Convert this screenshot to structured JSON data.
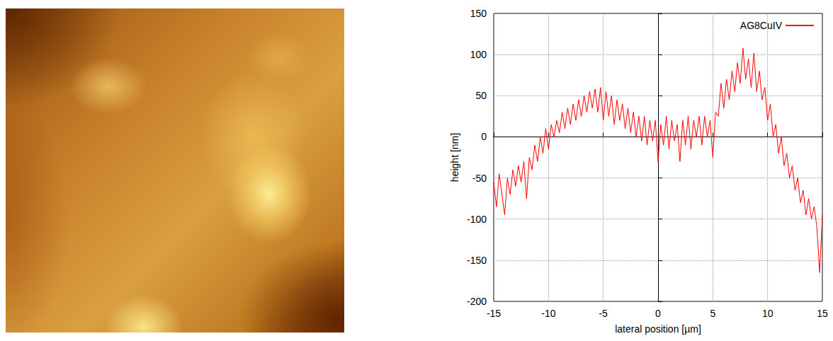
{
  "chart_data": {
    "type": "line",
    "x_label": "lateral position [µm]",
    "y_label": "height [nm]",
    "x": [
      -15,
      -14.75,
      -14.5,
      -14.25,
      -14,
      -13.75,
      -13.5,
      -13.25,
      -13,
      -12.75,
      -12.5,
      -12.25,
      -12,
      -11.75,
      -11.5,
      -11.25,
      -11,
      -10.75,
      -10.5,
      -10.25,
      -10,
      -9.75,
      -9.5,
      -9.25,
      -9,
      -8.75,
      -8.5,
      -8.25,
      -8,
      -7.75,
      -7.5,
      -7.25,
      -7,
      -6.75,
      -6.5,
      -6.25,
      -6,
      -5.75,
      -5.5,
      -5.25,
      -5,
      -4.75,
      -4.5,
      -4.25,
      -4,
      -3.75,
      -3.5,
      -3.25,
      -3,
      -2.75,
      -2.5,
      -2.25,
      -2,
      -1.75,
      -1.5,
      -1.25,
      -1,
      -0.75,
      -0.5,
      -0.25,
      0,
      0.25,
      0.5,
      0.75,
      1,
      1.25,
      1.5,
      1.75,
      2,
      2.25,
      2.5,
      2.75,
      3,
      3.25,
      3.5,
      3.75,
      4,
      4.25,
      4.5,
      4.75,
      5,
      5.25,
      5.5,
      5.75,
      6,
      6.25,
      6.5,
      6.75,
      7,
      7.25,
      7.5,
      7.75,
      8,
      8.25,
      8.5,
      8.75,
      9,
      9.25,
      9.5,
      9.75,
      10,
      10.25,
      10.5,
      10.75,
      11,
      11.25,
      11.5,
      11.75,
      12,
      12.25,
      12.5,
      12.75,
      13,
      13.25,
      13.5,
      13.75,
      14,
      14.25,
      14.5,
      14.75,
      15
    ],
    "series": [
      {
        "name": "AG8CuIV",
        "color": "#ff0000",
        "line_style": "solid",
        "values": [
          -55,
          -85,
          -45,
          -70,
          -95,
          -50,
          -70,
          -40,
          -60,
          -35,
          -55,
          -30,
          -75,
          -25,
          -40,
          -10,
          -30,
          0,
          -20,
          10,
          -15,
          15,
          0,
          20,
          5,
          30,
          10,
          35,
          15,
          40,
          20,
          45,
          25,
          50,
          30,
          55,
          35,
          58,
          30,
          60,
          20,
          55,
          25,
          50,
          15,
          45,
          20,
          40,
          10,
          35,
          5,
          30,
          0,
          25,
          -5,
          25,
          -10,
          20,
          -5,
          20,
          -30,
          15,
          -10,
          25,
          -15,
          20,
          -5,
          15,
          -30,
          20,
          -10,
          25,
          -15,
          20,
          0,
          25,
          -10,
          25,
          0,
          20,
          -25,
          30,
          25,
          65,
          35,
          70,
          45,
          80,
          55,
          90,
          65,
          108,
          70,
          95,
          60,
          102,
          55,
          80,
          45,
          60,
          20,
          40,
          0,
          15,
          -20,
          0,
          -35,
          -20,
          -50,
          -35,
          -65,
          -50,
          -80,
          -65,
          -95,
          -75,
          -100,
          -85,
          -110,
          -165,
          -95
        ]
      }
    ],
    "xlim": [
      -15,
      15
    ],
    "xticks": [
      -15,
      -10,
      -5,
      0,
      5,
      10,
      15
    ],
    "ylim": [
      -200,
      150
    ],
    "yticks": [
      -200,
      -150,
      -100,
      -50,
      0,
      50,
      100,
      150
    ],
    "grid": true,
    "legend": "upper right"
  }
}
